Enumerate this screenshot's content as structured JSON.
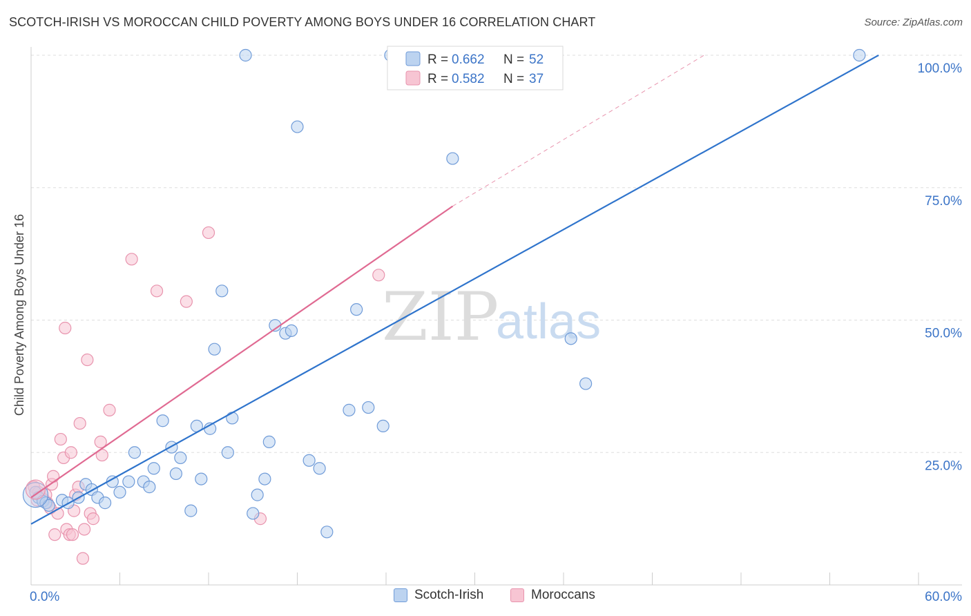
{
  "title": "SCOTCH-IRISH VS MOROCCAN CHILD POVERTY AMONG BOYS UNDER 16 CORRELATION CHART",
  "source": "Source: ZipAtlas.com",
  "watermark": {
    "zip": "ZIP",
    "atlas": "atlas"
  },
  "colors": {
    "blue_fill": "#bcd3f0",
    "blue_stroke": "#6f9bd8",
    "blue_line": "#2f74cc",
    "pink_fill": "#f7c5d3",
    "pink_stroke": "#e893ad",
    "pink_line": "#e06a92",
    "tick_text": "#3b74c7",
    "grid": "#dddddd"
  },
  "legend_box": {
    "rows": [
      {
        "r_label": "R = ",
        "r_value": "0.662",
        "n_label": "N = ",
        "n_value": "52",
        "series": "Scotch-Irish"
      },
      {
        "r_label": "R = ",
        "r_value": "0.582",
        "n_label": "N = ",
        "n_value": "37",
        "series": "Moroccans"
      }
    ]
  },
  "bottom_legend": {
    "items": [
      "Scotch-Irish",
      "Moroccans"
    ]
  },
  "chart_data": {
    "type": "scatter",
    "title": "SCOTCH-IRISH VS MOROCCAN CHILD POVERTY AMONG BOYS UNDER 16 CORRELATION CHART",
    "xlabel": "",
    "ylabel": "Child Poverty Among Boys Under 16",
    "xlim": [
      0,
      60
    ],
    "ylim": [
      0,
      100
    ],
    "x_tick_labels": [
      "0.0%",
      "60.0%"
    ],
    "y_ticks": [
      25,
      50,
      75,
      100
    ],
    "y_tick_labels": [
      "25.0%",
      "50.0%",
      "75.0%",
      "100.0%"
    ],
    "grid": true,
    "legend_position": "top-center",
    "series": [
      {
        "name": "Scotch-Irish",
        "r": 0.662,
        "n": 52,
        "points": [
          [
            0.3,
            17.5
          ],
          [
            0.5,
            16.5
          ],
          [
            0.8,
            15.8
          ],
          [
            1.0,
            15.5
          ],
          [
            1.2,
            15.0
          ],
          [
            2.1,
            16.0
          ],
          [
            2.5,
            15.5
          ],
          [
            3.2,
            16.5
          ],
          [
            3.7,
            19.0
          ],
          [
            4.1,
            18.0
          ],
          [
            4.5,
            16.5
          ],
          [
            5.0,
            15.5
          ],
          [
            5.5,
            19.5
          ],
          [
            6.0,
            17.5
          ],
          [
            6.6,
            19.5
          ],
          [
            7.0,
            25.0
          ],
          [
            7.6,
            19.5
          ],
          [
            8.0,
            18.5
          ],
          [
            8.3,
            22.0
          ],
          [
            8.9,
            31.0
          ],
          [
            9.5,
            26.0
          ],
          [
            9.8,
            21.0
          ],
          [
            10.1,
            24.0
          ],
          [
            10.8,
            14.0
          ],
          [
            11.2,
            30.0
          ],
          [
            11.5,
            20.0
          ],
          [
            12.1,
            29.5
          ],
          [
            12.4,
            44.5
          ],
          [
            12.9,
            55.5
          ],
          [
            13.3,
            25.0
          ],
          [
            13.6,
            31.5
          ],
          [
            14.5,
            100.0
          ],
          [
            15.0,
            13.5
          ],
          [
            15.3,
            17.0
          ],
          [
            15.8,
            20.0
          ],
          [
            16.1,
            27.0
          ],
          [
            16.5,
            49.0
          ],
          [
            17.2,
            47.5
          ],
          [
            17.6,
            48.0
          ],
          [
            18.0,
            86.5
          ],
          [
            18.8,
            23.5
          ],
          [
            19.5,
            22.0
          ],
          [
            20.0,
            10.0
          ],
          [
            21.5,
            33.0
          ],
          [
            22.0,
            52.0
          ],
          [
            22.8,
            33.5
          ],
          [
            23.8,
            30.0
          ],
          [
            24.3,
            100.0
          ],
          [
            28.5,
            80.5
          ],
          [
            36.5,
            46.5
          ],
          [
            37.5,
            38.0
          ],
          [
            56.0,
            100.0
          ]
        ],
        "trend_line": {
          "x": [
            0,
            57.3
          ],
          "y": [
            11.5,
            100.0
          ],
          "color": "#2f74cc"
        }
      },
      {
        "name": "Moroccans",
        "r": 0.582,
        "n": 37,
        "points": [
          [
            0.2,
            18.5
          ],
          [
            0.5,
            17.5
          ],
          [
            0.7,
            16.5
          ],
          [
            0.9,
            16.0
          ],
          [
            1.1,
            15.5
          ],
          [
            1.3,
            14.5
          ],
          [
            1.4,
            19.0
          ],
          [
            1.5,
            20.5
          ],
          [
            1.6,
            9.5
          ],
          [
            1.8,
            13.5
          ],
          [
            2.0,
            27.5
          ],
          [
            2.2,
            24.0
          ],
          [
            2.3,
            48.5
          ],
          [
            2.4,
            10.5
          ],
          [
            2.6,
            9.5
          ],
          [
            2.7,
            25.0
          ],
          [
            2.8,
            9.5
          ],
          [
            2.9,
            14.0
          ],
          [
            3.0,
            17.0
          ],
          [
            3.2,
            18.5
          ],
          [
            3.3,
            30.5
          ],
          [
            3.5,
            5.0
          ],
          [
            3.6,
            10.5
          ],
          [
            3.8,
            42.5
          ],
          [
            4.0,
            13.5
          ],
          [
            4.2,
            12.5
          ],
          [
            4.7,
            27.0
          ],
          [
            4.8,
            24.5
          ],
          [
            5.3,
            33.0
          ],
          [
            6.8,
            61.5
          ],
          [
            8.5,
            55.5
          ],
          [
            10.5,
            53.5
          ],
          [
            12.0,
            66.5
          ],
          [
            15.5,
            12.5
          ],
          [
            23.5,
            58.5
          ],
          [
            0.4,
            16.0
          ],
          [
            1.0,
            17.0
          ]
        ],
        "trend_line": {
          "x": [
            0,
            28.5
          ],
          "y": [
            16.5,
            71.5
          ],
          "color": "#e06a92"
        },
        "trend_line_extension": {
          "x": [
            28.5,
            45.5
          ],
          "y": [
            71.5,
            100.0
          ],
          "style": "dashed"
        }
      }
    ]
  }
}
